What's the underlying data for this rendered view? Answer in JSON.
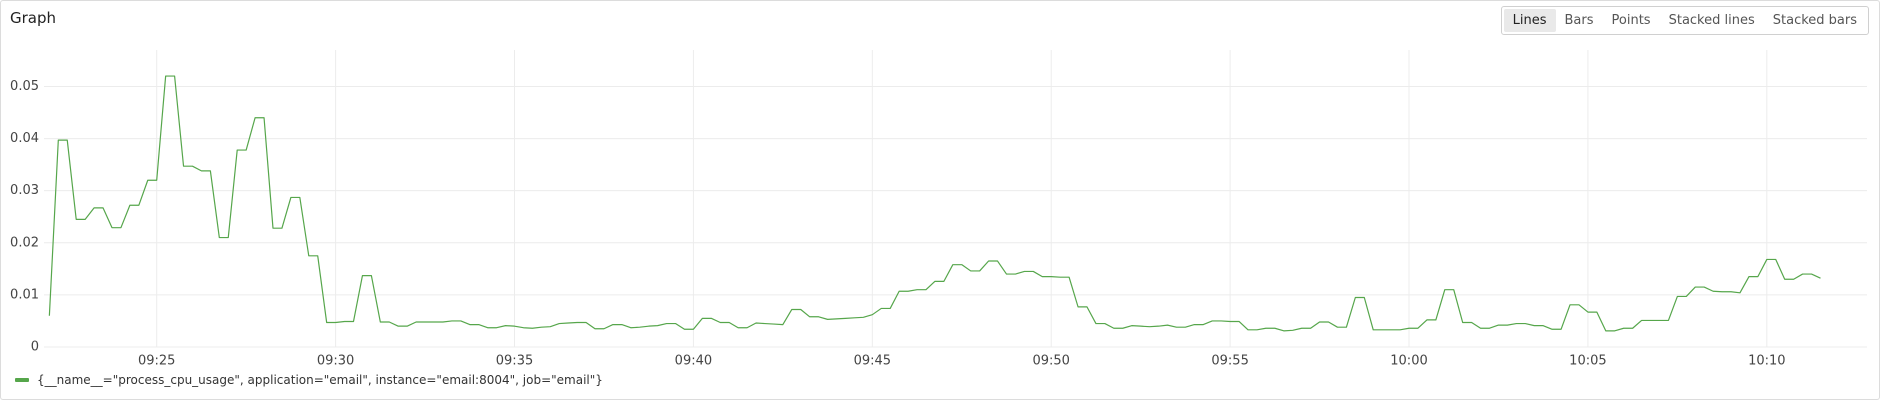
{
  "chart_data": {
    "type": "line",
    "title": "Graph",
    "controls": {
      "view_modes": [
        "Lines",
        "Bars",
        "Points",
        "Stacked lines",
        "Stacked bars"
      ],
      "active_mode": "Lines"
    },
    "xlim": [
      561.85,
      612.8
    ],
    "xticks": [
      {
        "value": 565,
        "label": "09:25"
      },
      {
        "value": 570,
        "label": "09:30"
      },
      {
        "value": 575,
        "label": "09:35"
      },
      {
        "value": 580,
        "label": "09:40"
      },
      {
        "value": 585,
        "label": "09:45"
      },
      {
        "value": 590,
        "label": "09:50"
      },
      {
        "value": 595,
        "label": "09:55"
      },
      {
        "value": 600,
        "label": "10:00"
      },
      {
        "value": 605,
        "label": "10:05"
      },
      {
        "value": 610,
        "label": "10:10"
      }
    ],
    "ylim": [
      0,
      0.057
    ],
    "yticks": [
      0,
      0.01,
      0.02,
      0.03,
      0.04,
      0.05
    ],
    "grid": true,
    "x": [
      562,
      562.25,
      562.5,
      562.75,
      563,
      563.25,
      563.5,
      563.75,
      564,
      564.25,
      564.5,
      564.75,
      565,
      565.25,
      565.5,
      565.75,
      566,
      566.25,
      566.5,
      566.75,
      567,
      567.25,
      567.5,
      567.75,
      568,
      568.25,
      568.5,
      568.75,
      569,
      569.25,
      569.5,
      569.75,
      570,
      570.25,
      570.5,
      570.75,
      571,
      571.25,
      571.5,
      571.75,
      572,
      572.25,
      572.5,
      572.75,
      573,
      573.25,
      573.5,
      573.75,
      574,
      574.25,
      574.5,
      574.75,
      575,
      575.25,
      575.5,
      575.75,
      576,
      576.25,
      576.5,
      576.75,
      577,
      577.25,
      577.5,
      577.75,
      578,
      578.25,
      578.5,
      578.75,
      579,
      579.25,
      579.5,
      579.75,
      580,
      580.25,
      580.5,
      580.75,
      581,
      581.25,
      581.5,
      581.75,
      582,
      582.25,
      582.5,
      582.75,
      583,
      583.25,
      583.5,
      583.75,
      584,
      584.25,
      584.5,
      584.75,
      585,
      585.25,
      585.5,
      585.75,
      586,
      586.25,
      586.5,
      586.75,
      587,
      587.25,
      587.5,
      587.75,
      588,
      588.25,
      588.5,
      588.75,
      589,
      589.25,
      589.5,
      589.75,
      590,
      590.25,
      590.5,
      590.75,
      591,
      591.25,
      591.5,
      591.75,
      592,
      592.25,
      592.5,
      592.75,
      593,
      593.25,
      593.5,
      593.75,
      594,
      594.25,
      594.5,
      594.75,
      595,
      595.25,
      595.5,
      595.75,
      596,
      596.25,
      596.5,
      596.75,
      597,
      597.25,
      597.5,
      597.75,
      598,
      598.25,
      598.5,
      598.75,
      599,
      599.25,
      599.5,
      599.75,
      600,
      600.25,
      600.5,
      600.75,
      601,
      601.25,
      601.5,
      601.75,
      602,
      602.25,
      602.5,
      602.75,
      603,
      603.25,
      603.5,
      603.75,
      604,
      604.25,
      604.5,
      604.75,
      605,
      605.25,
      605.5,
      605.75,
      606,
      606.25,
      606.5,
      606.75,
      607,
      607.25,
      607.5,
      607.75,
      608,
      608.25,
      608.5,
      608.75,
      609,
      609.25,
      609.5,
      609.75,
      610,
      610.25,
      610.5,
      610.75,
      611,
      611.25,
      611.5
    ],
    "series": [
      {
        "name": "{__name__=\"process_cpu_usage\", application=\"email\", instance=\"email:8004\", job=\"email\"}",
        "color": "#56a64b",
        "values": [
          0.006,
          0.0397,
          0.0397,
          0.0245,
          0.0245,
          0.0267,
          0.0267,
          0.0229,
          0.0229,
          0.0272,
          0.0272,
          0.032,
          0.032,
          0.052,
          0.052,
          0.0347,
          0.0347,
          0.0338,
          0.0338,
          0.021,
          0.021,
          0.0378,
          0.0378,
          0.044,
          0.044,
          0.0228,
          0.0228,
          0.0287,
          0.0287,
          0.0175,
          0.0175,
          0.0047,
          0.0047,
          0.0049,
          0.0049,
          0.0137,
          0.0137,
          0.0048,
          0.0048,
          0.004,
          0.004,
          0.0048,
          0.0048,
          0.0048,
          0.0048,
          0.005,
          0.005,
          0.0043,
          0.0043,
          0.0037,
          0.0037,
          0.0041,
          0.004,
          0.0037,
          0.0036,
          0.0038,
          0.0039,
          0.0045,
          0.0046,
          0.0047,
          0.0047,
          0.0035,
          0.0035,
          0.0043,
          0.0043,
          0.0037,
          0.0038,
          0.004,
          0.0041,
          0.0045,
          0.0045,
          0.0034,
          0.0034,
          0.0055,
          0.0055,
          0.0047,
          0.0047,
          0.0037,
          0.0037,
          0.0046,
          0.0045,
          0.0044,
          0.0043,
          0.0072,
          0.0072,
          0.0058,
          0.0058,
          0.0053,
          0.0054,
          0.0055,
          0.0056,
          0.0057,
          0.0062,
          0.0074,
          0.0074,
          0.0107,
          0.0107,
          0.011,
          0.011,
          0.0126,
          0.0126,
          0.0158,
          0.0158,
          0.0146,
          0.0146,
          0.0165,
          0.0165,
          0.014,
          0.014,
          0.0145,
          0.0145,
          0.0135,
          0.0135,
          0.0134,
          0.0134,
          0.0077,
          0.0077,
          0.0045,
          0.0045,
          0.0036,
          0.0036,
          0.0041,
          0.004,
          0.0039,
          0.004,
          0.0042,
          0.0038,
          0.0038,
          0.0043,
          0.0043,
          0.005,
          0.005,
          0.0049,
          0.0049,
          0.0033,
          0.0033,
          0.0036,
          0.0036,
          0.0031,
          0.0032,
          0.0036,
          0.0036,
          0.0048,
          0.0048,
          0.0038,
          0.0038,
          0.0095,
          0.0095,
          0.0033,
          0.0033,
          0.0033,
          0.0033,
          0.0036,
          0.0036,
          0.0052,
          0.0052,
          0.011,
          0.011,
          0.0047,
          0.0047,
          0.0036,
          0.0036,
          0.0042,
          0.0042,
          0.0045,
          0.0045,
          0.0041,
          0.0041,
          0.0034,
          0.0034,
          0.0081,
          0.0081,
          0.0067,
          0.0067,
          0.0031,
          0.0031,
          0.0036,
          0.0036,
          0.0051,
          0.0051,
          0.0051,
          0.0051,
          0.0097,
          0.0097,
          0.0115,
          0.0115,
          0.0107,
          0.0106,
          0.0106,
          0.0104,
          0.0135,
          0.0135,
          0.0168,
          0.0168,
          0.013,
          0.013,
          0.014,
          0.014,
          0.0132
        ]
      }
    ]
  }
}
